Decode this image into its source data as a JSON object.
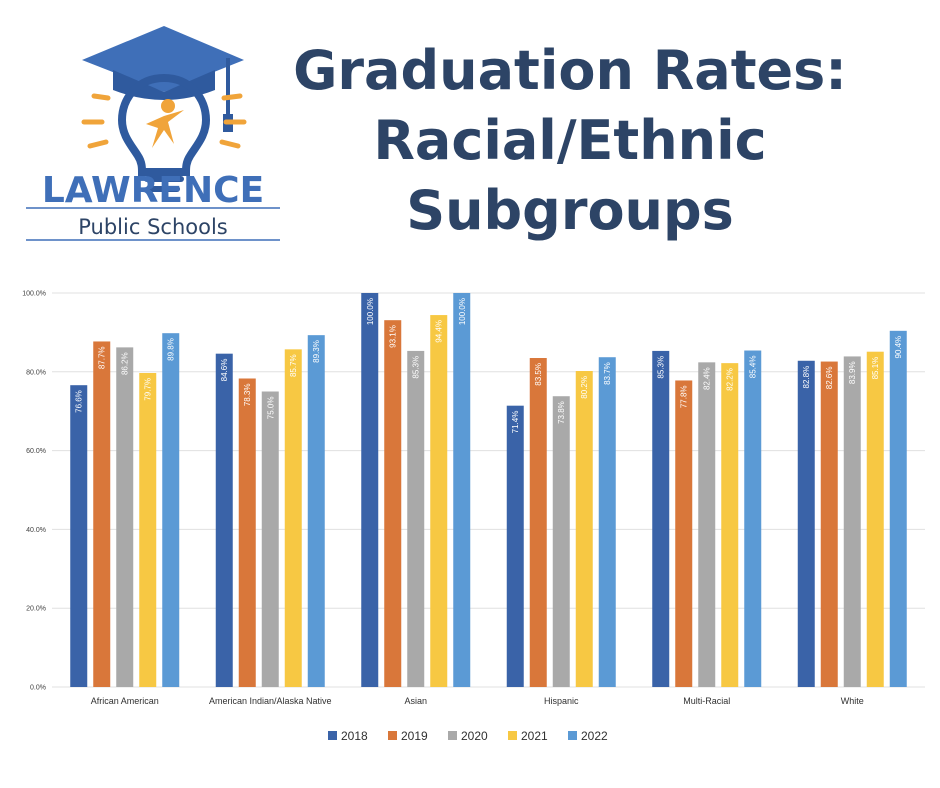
{
  "logo": {
    "name_line1": "LAWRENCE",
    "name_line2": "Public Schools"
  },
  "title": {
    "line1": "Graduation Rates:",
    "line2": "Racial/Ethnic",
    "line3": "Subgroups"
  },
  "colors": {
    "title": "#2d4466",
    "logo_blue": "#3f6fb8",
    "logo_orange": "#f0a43a"
  },
  "chart_data": {
    "type": "bar",
    "categories": [
      "African American",
      "American Indian/Alaska Native",
      "Asian",
      "Hispanic",
      "Multi-Racial",
      "White"
    ],
    "series": [
      {
        "name": "2018",
        "color": "#3a63a8",
        "values": [
          76.6,
          84.6,
          100.0,
          71.4,
          85.3,
          82.8
        ],
        "labels": [
          "76.6%",
          "84.6%",
          "100.0%",
          "71.4%",
          "85.3%",
          "82.8%"
        ]
      },
      {
        "name": "2019",
        "color": "#d9773a",
        "values": [
          87.7,
          78.3,
          93.1,
          83.5,
          77.8,
          82.6
        ],
        "labels": [
          "87.7%",
          "78.3%",
          "93.1%",
          "83.5%",
          "77.8%",
          "82.6%"
        ]
      },
      {
        "name": "2020",
        "color": "#a9a9a9",
        "values": [
          86.2,
          75.0,
          85.3,
          73.8,
          82.4,
          83.9
        ],
        "labels": [
          "86.2%",
          "75.0%",
          "85.3%",
          "73.8%",
          "82.4%",
          "83.9%"
        ]
      },
      {
        "name": "2021",
        "color": "#f7c843",
        "values": [
          79.7,
          85.7,
          94.4,
          80.2,
          82.2,
          85.1
        ],
        "labels": [
          "79.7%",
          "85.7%",
          "94.4%",
          "80.2%",
          "82.2%",
          "85.1%"
        ]
      },
      {
        "name": "2022",
        "color": "#5b9ad5",
        "values": [
          89.8,
          89.3,
          100.0,
          83.7,
          85.4,
          90.4
        ],
        "labels": [
          "89.8%",
          "89.3%",
          "100.0%",
          "83.7%",
          "85.4%",
          "90.4%"
        ]
      }
    ],
    "y_ticks": [
      "0.0%",
      "20.0%",
      "40.0%",
      "60.0%",
      "80.0%",
      "100.0%"
    ],
    "ylim": [
      0,
      100
    ],
    "grid": true,
    "legend_position": "bottom"
  }
}
